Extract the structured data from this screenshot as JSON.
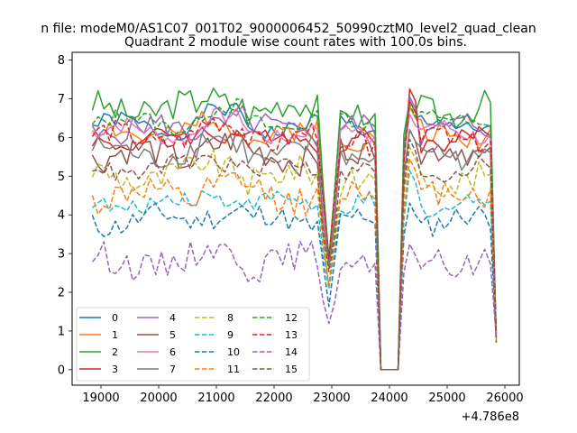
{
  "suptitle": "n file: modeM0/AS1C07_001T02_9000006452_50990cztM0_level2_quad_clean",
  "chart_data": {
    "type": "line",
    "title": "Quadrant 2 module wise count rates with 100.0s bins.",
    "xlabel": "",
    "ylabel": "",
    "x_offset_label": "+4.786e8",
    "xlim": [
      18500,
      26250
    ],
    "ylim": [
      -0.4,
      8.2
    ],
    "xticks": [
      19000,
      20000,
      21000,
      22000,
      23000,
      24000,
      25000,
      26000
    ],
    "xtick_labels": [
      "19000",
      "20000",
      "21000",
      "22000",
      "23000",
      "24000",
      "25000",
      "26000"
    ],
    "yticks": [
      0,
      1,
      2,
      3,
      4,
      5,
      6,
      7,
      8
    ],
    "ytick_labels": [
      "0",
      "1",
      "2",
      "3",
      "4",
      "5",
      "6",
      "7",
      "8"
    ],
    "grid": false,
    "legend_position": "lower-left",
    "legend_columns": 4,
    "time_start": 18850,
    "bin": 100,
    "colors": [
      "#1f77b4",
      "#ff7f0e",
      "#2ca02c",
      "#d62728",
      "#9467bd",
      "#8c564b",
      "#e377c2",
      "#7f7f7f",
      "#bcbd22",
      "#17becf",
      "#1f77b4",
      "#ff7f0e",
      "#2ca02c",
      "#d62728",
      "#9467bd",
      "#8c564b"
    ],
    "dashed": [
      false,
      false,
      false,
      false,
      false,
      false,
      false,
      false,
      true,
      true,
      true,
      true,
      true,
      true,
      true,
      true
    ],
    "series": [
      {
        "name": "0",
        "base": 6.3,
        "extra": 6.8
      },
      {
        "name": "1",
        "base": 6.1,
        "extra": 6.8
      },
      {
        "name": "2",
        "base": 6.75,
        "extra": 6.95
      },
      {
        "name": "3",
        "base": 5.95,
        "extra": 7.25
      },
      {
        "name": "4",
        "base": 6.2,
        "extra": 7.05
      },
      {
        "name": "5",
        "base": 5.55,
        "extra": 6.2
      },
      {
        "name": "6",
        "base": 6.15,
        "extra": 6.6
      },
      {
        "name": "7",
        "base": 5.6,
        "extra": 6.2
      },
      {
        "name": "8",
        "base": 5.0,
        "extra": 5.75
      },
      {
        "name": "9",
        "base": 4.3,
        "extra": 5.15
      },
      {
        "name": "10",
        "base": 3.85,
        "extra": 4.3
      },
      {
        "name": "11",
        "base": 4.5,
        "extra": 5.45
      },
      {
        "name": "12",
        "base": 6.4,
        "extra": 6.85
      },
      {
        "name": "13",
        "base": 6.0,
        "extra": 6.95
      },
      {
        "name": "14",
        "base": 2.8,
        "extra": 3.25
      },
      {
        "name": "15",
        "base": 5.2,
        "extra": 5.95
      }
    ]
  }
}
